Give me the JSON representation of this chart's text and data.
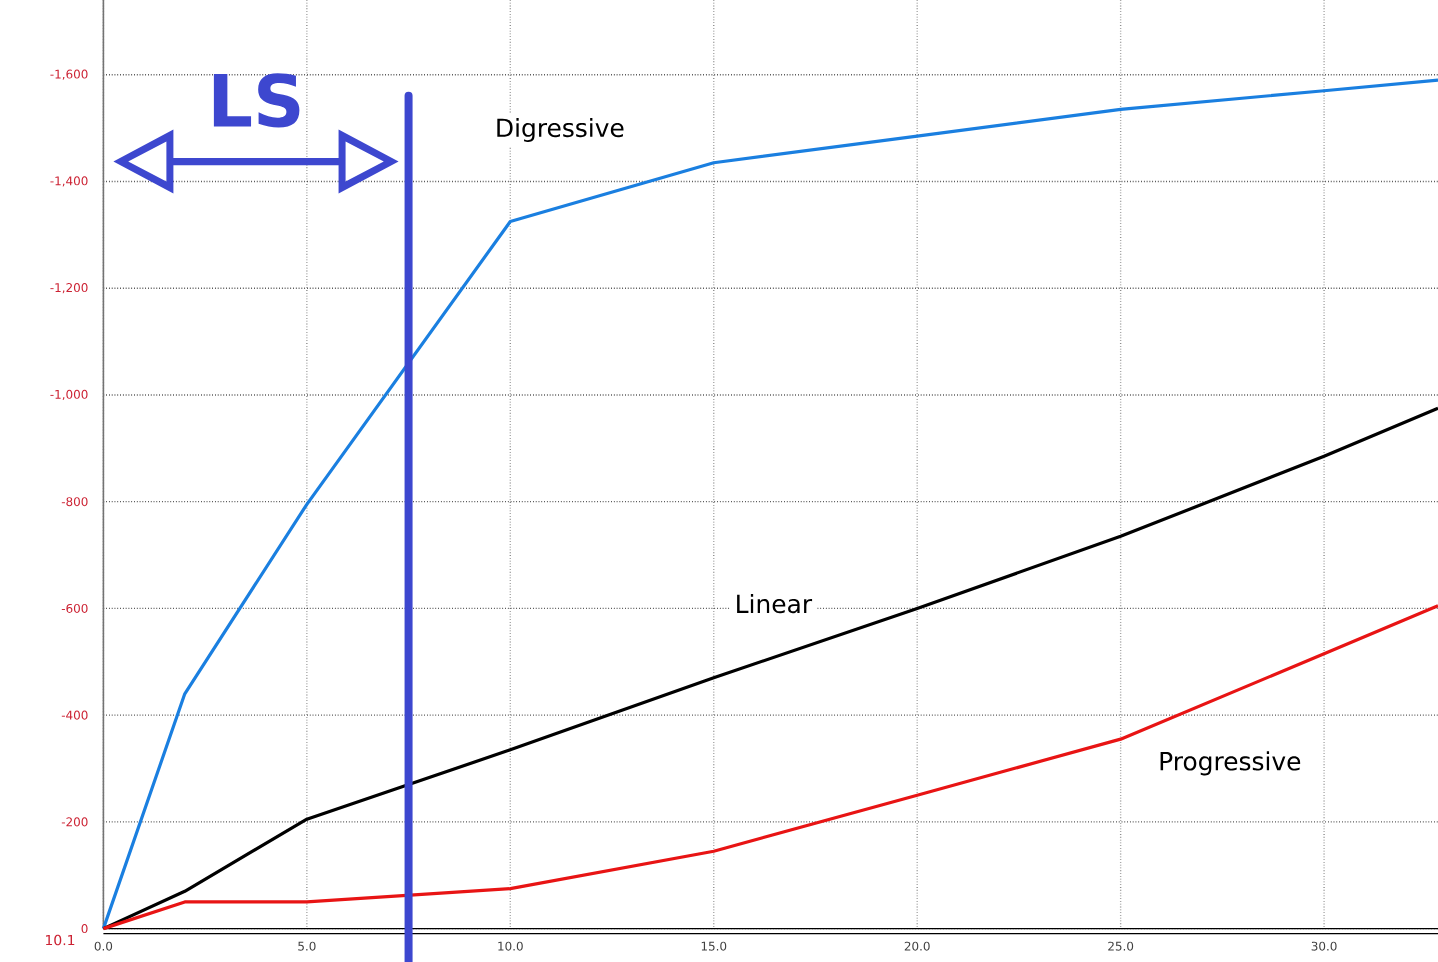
{
  "chart_data": {
    "type": "line",
    "x": [
      0,
      2,
      5,
      10,
      15,
      20,
      25,
      30,
      32.8
    ],
    "series": [
      {
        "name": "Digressive",
        "color": "#1a7fe0",
        "values": [
          0,
          -440,
          -795,
          -1325,
          -1435,
          -1485,
          -1535,
          -1570,
          -1590
        ]
      },
      {
        "name": "Linear",
        "color": "#000000",
        "values": [
          0,
          -70,
          -205,
          -335,
          -470,
          -600,
          -735,
          -885,
          -975
        ]
      },
      {
        "name": "Progressive",
        "color": "#e81414",
        "values": [
          0,
          -50,
          -50,
          -75,
          -145,
          -250,
          -355,
          -515,
          -605
        ]
      }
    ],
    "xlim": [
      0,
      32.8
    ],
    "ylim": [
      0,
      -1740
    ],
    "xticks": [
      {
        "value": 0,
        "label": "0.0"
      },
      {
        "value": 5,
        "label": "5.0"
      },
      {
        "value": 10,
        "label": "10.0"
      },
      {
        "value": 15,
        "label": "15.0"
      },
      {
        "value": 20,
        "label": "20.0"
      },
      {
        "value": 25,
        "label": "25.0"
      },
      {
        "value": 30,
        "label": "30.0"
      }
    ],
    "yticks": [
      0,
      -200,
      -400,
      -600,
      -800,
      {
        "value": -1000,
        "label": "-1,000"
      },
      {
        "value": -1200,
        "label": "-1,200"
      },
      {
        "value": -1400,
        "label": "-1,400"
      },
      {
        "value": -1600,
        "label": "-1,600"
      }
    ],
    "grid": true,
    "legend": false,
    "marker": "none",
    "line_style": "solid",
    "ref_lines": [
      {
        "axis": "x",
        "value": 7.5,
        "label": "LS",
        "color": "#3d47cf"
      }
    ],
    "annotations": [
      "10.1"
    ]
  }
}
